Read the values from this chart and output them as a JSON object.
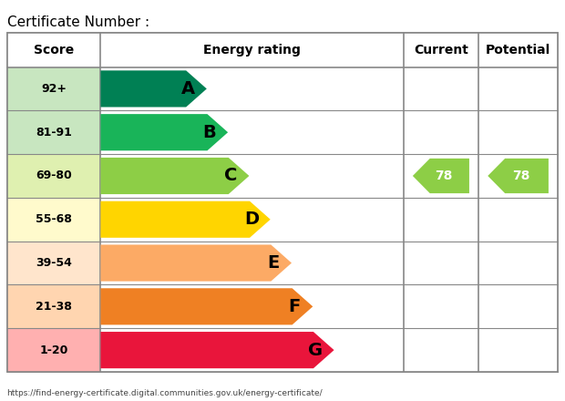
{
  "title": "Certificate Number :",
  "footer": "https://find-energy-certificate.digital.communities.gov.uk/energy-certificate/",
  "headers": [
    "Score",
    "Energy rating",
    "Current",
    "Potential"
  ],
  "ratings": [
    {
      "score": "92+",
      "letter": "A",
      "color": "#008054",
      "bar_width": 0.35
    },
    {
      "score": "81-91",
      "letter": "B",
      "color": "#19b459",
      "bar_width": 0.42
    },
    {
      "score": "69-80",
      "letter": "C",
      "color": "#8dce46",
      "bar_width": 0.49
    },
    {
      "score": "55-68",
      "letter": "D",
      "color": "#ffd500",
      "bar_width": 0.56
    },
    {
      "score": "39-54",
      "letter": "E",
      "color": "#fcaa65",
      "bar_width": 0.63
    },
    {
      "score": "21-38",
      "letter": "F",
      "color": "#ef8023",
      "bar_width": 0.7
    },
    {
      "score": "1-20",
      "letter": "G",
      "color": "#e9153b",
      "bar_width": 0.77
    }
  ],
  "current_value": "78",
  "potential_value": "78",
  "current_row": 2,
  "potential_row": 2,
  "arrow_color": "#8dce46",
  "score_col_color": "#e0e0e0",
  "header_bg": "#f0f0f0",
  "border_color": "#888888",
  "col_dividers": [
    0.17,
    0.72,
    0.855
  ]
}
